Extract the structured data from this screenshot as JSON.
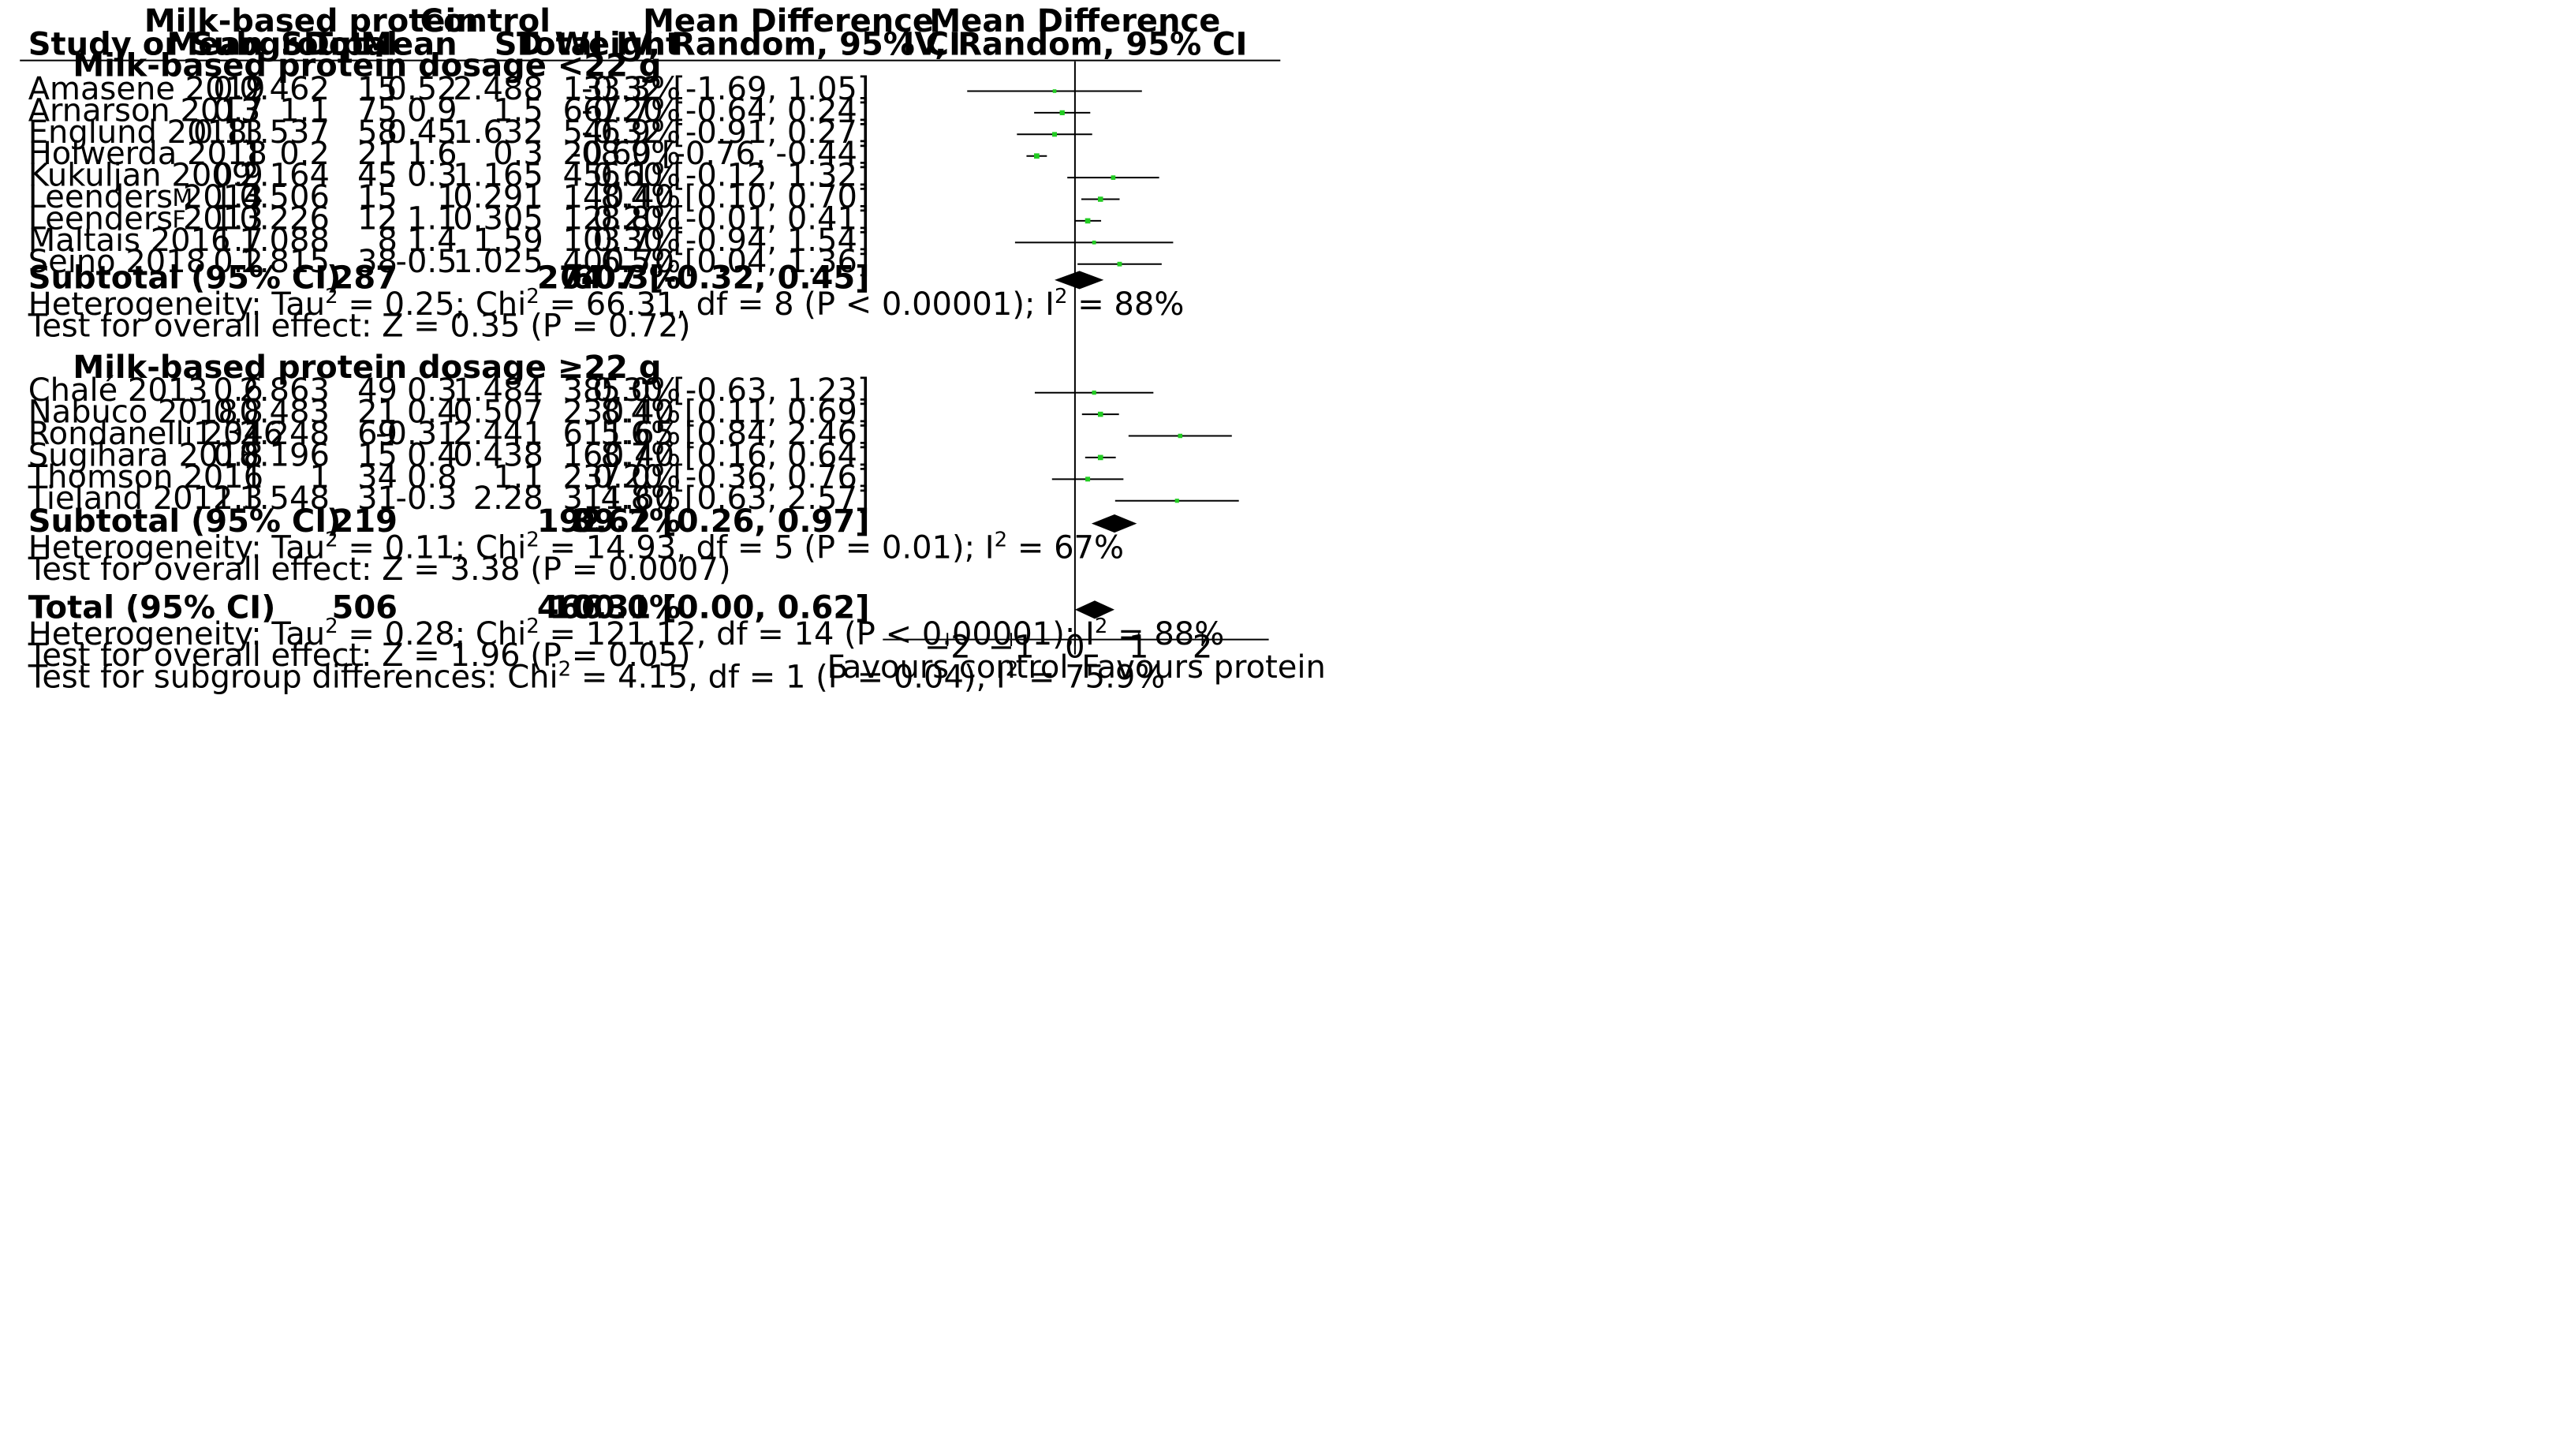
{
  "chart_data": {
    "type": "forest",
    "header": {
      "group_exp": "Milk-based protein",
      "group_ctl": "Control",
      "md_header_line1": "Mean Difference",
      "md_header_line2": "IV, Random, 95% CI",
      "plot_header_line1": "Mean Difference",
      "plot_header_line2": "IV, Random, 95% CI",
      "cols": {
        "study": "Study or Subgroup",
        "exp_mean": "Mean",
        "exp_sd": "SD",
        "exp_total": "Total",
        "ctl_mean": "Mean",
        "ctl_sd": "SD",
        "ctl_total": "Total",
        "weight": "Weight"
      }
    },
    "subgroups": [
      {
        "title": "Milk-based protein dosage <22 g",
        "studies": [
          {
            "name": "Amasene 2019",
            "marker": "",
            "exp_mean": "0.2",
            "exp_sd": "0.462",
            "exp_total": "15",
            "ctl_mean": "0.52",
            "ctl_sd": "2.488",
            "ctl_total": "13",
            "weight": "3.3%",
            "ci_text": "-0.32 [-1.69, 1.05]",
            "md": -0.32,
            "lo": -1.69,
            "hi": 1.05,
            "w": 3.3
          },
          {
            "name": "Arnarson 2013",
            "marker": "",
            "exp_mean": "0.7",
            "exp_sd": "1.1",
            "exp_total": "75",
            "ctl_mean": "0.9",
            "ctl_sd": "1.5",
            "ctl_total": "66",
            "weight": "7.7%",
            "ci_text": "-0.20 [-0.64, 0.24]",
            "md": -0.2,
            "lo": -0.64,
            "hi": 0.24,
            "w": 7.7
          },
          {
            "name": "Englund 2018",
            "marker": "",
            "exp_mean": "0.13",
            "exp_sd": "1.537",
            "exp_total": "58",
            "ctl_mean": "0.45",
            "ctl_sd": "1.632",
            "ctl_total": "54",
            "weight": "6.9%",
            "ci_text": "-0.32 [-0.91, 0.27]",
            "md": -0.32,
            "lo": -0.91,
            "hi": 0.27,
            "w": 6.9
          },
          {
            "name": "Holwerda 2018",
            "marker": "",
            "exp_mean": "1",
            "exp_sd": "0.2",
            "exp_total": "21",
            "ctl_mean": "1.6",
            "ctl_sd": "0.3",
            "ctl_total": "20",
            "weight": "8.9%",
            "ci_text": "-0.60 [-0.76, -0.44]",
            "md": -0.6,
            "lo": -0.76,
            "hi": -0.44,
            "w": 8.9
          },
          {
            "name": "Kukuljan 2009",
            "marker": "",
            "exp_mean": "0.9",
            "exp_sd": "2.164",
            "exp_total": "45",
            "ctl_mean": "0.3",
            "ctl_sd": "1.165",
            "ctl_total": "45",
            "weight": "6.1%",
            "ci_text": "0.60 [-0.12, 1.32]",
            "md": 0.6,
            "lo": -0.12,
            "hi": 1.32,
            "w": 6.1
          },
          {
            "name": "Leenders 2013",
            "marker": "M",
            "exp_mean": "1.4",
            "exp_sd": "0.506",
            "exp_total": "15",
            "ctl_mean": "1",
            "ctl_sd": "0.291",
            "ctl_total": "14",
            "weight": "8.4%",
            "ci_text": "0.40 [0.10, 0.70]",
            "md": 0.4,
            "lo": 0.1,
            "hi": 0.7,
            "w": 8.4
          },
          {
            "name": "Leenders 2013",
            "marker": "F",
            "exp_mean": "1.3",
            "exp_sd": "0.226",
            "exp_total": "12",
            "ctl_mean": "1.1",
            "ctl_sd": "0.305",
            "ctl_total": "12",
            "weight": "8.8%",
            "ci_text": "0.20 [-0.01, 0.41]",
            "md": 0.2,
            "lo": -0.01,
            "hi": 0.41,
            "w": 8.8
          },
          {
            "name": "Maltais 2016",
            "marker": "",
            "exp_mean": "1.7",
            "exp_sd": "1.088",
            "exp_total": "8",
            "ctl_mean": "1.4",
            "ctl_sd": "1.59",
            "ctl_total": "10",
            "weight": "3.7%",
            "ci_text": "0.30 [-0.94, 1.54]",
            "md": 0.3,
            "lo": -0.94,
            "hi": 1.54,
            "w": 3.7
          },
          {
            "name": "Seino 2018",
            "marker": "",
            "exp_mean": "0.2",
            "exp_sd": "1.815",
            "exp_total": "38",
            "ctl_mean": "-0.5",
            "ctl_sd": "1.025",
            "ctl_total": "40",
            "weight": "6.5%",
            "ci_text": "0.70 [0.04, 1.36]",
            "md": 0.7,
            "lo": 0.04,
            "hi": 1.36,
            "w": 6.5
          }
        ],
        "subtotal": {
          "label": "Subtotal (95% CI)",
          "exp_total": "287",
          "ctl_total": "274",
          "weight": "60.3%",
          "ci_text": "0.07 [-0.32, 0.45]",
          "md": 0.07,
          "lo": -0.32,
          "hi": 0.45
        },
        "heterogeneity": {
          "p1": "Heterogeneity: Tau",
          "p2": " = 0.25; Chi",
          "p3": " = 66.31, df = 8 (P < 0.00001); I",
          "p4": " = 88%"
        },
        "overall": "Test for overall effect: Z = 0.35 (P = 0.72)"
      },
      {
        "title": "Milk-based protein dosage ≥22 g",
        "studies": [
          {
            "name": "Chalé 2013",
            "marker": "",
            "exp_mean": "0.6",
            "exp_sd": "2.863",
            "exp_total": "49",
            "ctl_mean": "0.3",
            "ctl_sd": "1.484",
            "ctl_total": "38",
            "weight": "5.0%",
            "ci_text": "0.30 [-0.63, 1.23]",
            "md": 0.3,
            "lo": -0.63,
            "hi": 1.23,
            "w": 5.0
          },
          {
            "name": "Nabuco 2018",
            "marker": "",
            "exp_mean": "0.8",
            "exp_sd": "0.483",
            "exp_total": "21",
            "ctl_mean": "0.4",
            "ctl_sd": "0.507",
            "ctl_total": "23",
            "weight": "8.4%",
            "ci_text": "0.40 [0.11, 0.69]",
            "md": 0.4,
            "lo": 0.11,
            "hi": 0.69,
            "w": 8.4
          },
          {
            "name": "Rondanelli 2016",
            "marker": "",
            "exp_mean": "1.34",
            "exp_sd": "2.248",
            "exp_total": "69",
            "ctl_mean": "-0.31",
            "ctl_sd": "2.441",
            "ctl_total": "61",
            "weight": "5.6%",
            "ci_text": "1.65 [0.84, 2.46]",
            "md": 1.65,
            "lo": 0.84,
            "hi": 2.46,
            "w": 5.6
          },
          {
            "name": "Sugihara 2018",
            "marker": "",
            "exp_mean": "0.8",
            "exp_sd": "0.196",
            "exp_total": "15",
            "ctl_mean": "0.4",
            "ctl_sd": "0.438",
            "ctl_total": "16",
            "weight": "8.7%",
            "ci_text": "0.40 [0.16, 0.64]",
            "md": 0.4,
            "lo": 0.16,
            "hi": 0.64,
            "w": 8.7
          },
          {
            "name": "Thomson 2016",
            "marker": "",
            "exp_mean": "1",
            "exp_sd": "1",
            "exp_total": "34",
            "ctl_mean": "0.8",
            "ctl_sd": "1.1",
            "ctl_total": "23",
            "weight": "7.0%",
            "ci_text": "0.20 [-0.36, 0.76]",
            "md": 0.2,
            "lo": -0.36,
            "hi": 0.76,
            "w": 7.0
          },
          {
            "name": "Tieland 2012",
            "marker": "",
            "exp_mean": "1.3",
            "exp_sd": "1.548",
            "exp_total": "31",
            "ctl_mean": "-0.3",
            "ctl_sd": "2.28",
            "ctl_total": "31",
            "weight": "4.8%",
            "ci_text": "1.60 [0.63, 2.57]",
            "md": 1.6,
            "lo": 0.63,
            "hi": 2.57,
            "w": 4.8
          }
        ],
        "subtotal": {
          "label": "Subtotal (95% CI)",
          "exp_total": "219",
          "ctl_total": "192",
          "weight": "39.7%",
          "ci_text": "0.62 [0.26, 0.97]",
          "md": 0.62,
          "lo": 0.26,
          "hi": 0.97
        },
        "heterogeneity": {
          "p1": "Heterogeneity: Tau",
          "p2": " = 0.11; Chi",
          "p3": " = 14.93, df = 5 (P = 0.01); I",
          "p4": " = 67%"
        },
        "overall": "Test for overall effect: Z = 3.38 (P = 0.0007)"
      }
    ],
    "total": {
      "label": "Total (95% CI)",
      "exp_total": "506",
      "ctl_total": "466",
      "weight": "100.0%",
      "ci_text": "0.31 [0.00, 0.62]",
      "md": 0.31,
      "lo": 0.0,
      "hi": 0.62,
      "heterogeneity": {
        "p1": "Heterogeneity: Tau",
        "p2": " = 0.28; Chi",
        "p3": " = 121.12, df = 14 (P < 0.00001); I",
        "p4": " = 88%"
      },
      "overall": "Test for overall effect: Z = 1.96 (P = 0.05)",
      "subgroup_diff": {
        "p1": "Test for subgroup differences: Chi",
        "p2": " = 4.15, df = 1 (P = 0.04), I",
        "p3": " = 75.9%"
      }
    },
    "axis": {
      "xlim": [
        -2,
        3
      ],
      "ticks": [
        -2,
        -1,
        0,
        1,
        2
      ],
      "tick_labels": [
        "−2",
        "−1",
        "0",
        "1",
        "2"
      ],
      "left_label": "Favours control",
      "right_label": "Favours protein"
    },
    "colors": {
      "study_point": "#22cc22",
      "diamond": "#000000",
      "line": "#000000"
    }
  }
}
